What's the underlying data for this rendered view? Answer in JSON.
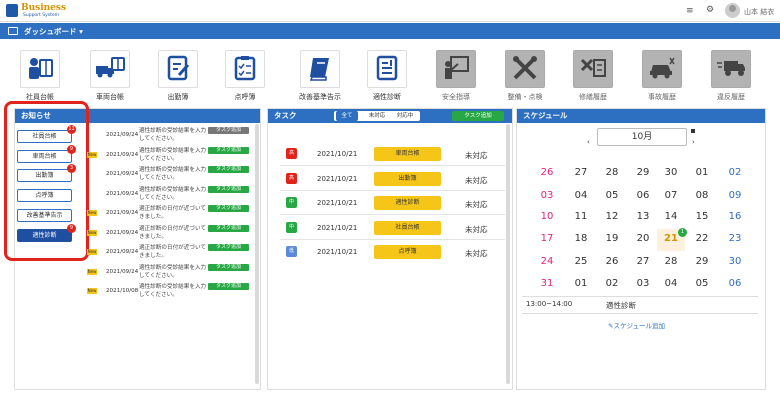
{
  "header": {
    "logo_title": "Business",
    "logo_sub": "Support System",
    "menu_glyph": "≡",
    "gear_glyph": "⚙",
    "user": "山本 結衣"
  },
  "dashbar": {
    "label": "ダッシュボード ▾"
  },
  "tiles": [
    {
      "label": "社員台帳",
      "gray": false,
      "icon": "employee-ledger-icon"
    },
    {
      "label": "車両台帳",
      "gray": false,
      "icon": "vehicle-ledger-icon"
    },
    {
      "label": "出勤簿",
      "gray": false,
      "icon": "attendance-icon"
    },
    {
      "label": "点呼簿",
      "gray": false,
      "icon": "rollcall-icon"
    },
    {
      "label": "改善基準告示",
      "gray": false,
      "icon": "book-icon"
    },
    {
      "label": "適性診断",
      "gray": false,
      "icon": "diagnosis-icon"
    },
    {
      "label": "安全指導",
      "gray": true,
      "icon": "safety-guidance-icon"
    },
    {
      "label": "整備・点検",
      "gray": true,
      "icon": "tools-icon"
    },
    {
      "label": "修繕履歴",
      "gray": true,
      "icon": "repair-icon"
    },
    {
      "label": "事故履歴",
      "gray": true,
      "icon": "accident-icon"
    },
    {
      "label": "違反履歴",
      "gray": true,
      "icon": "truck-icon"
    }
  ],
  "notice": {
    "title": "お知らせ",
    "buttons": [
      {
        "label": "社員台帳",
        "badge": "11"
      },
      {
        "label": "車両台帳",
        "badge": "9"
      },
      {
        "label": "出勤簿",
        "badge": "3"
      },
      {
        "label": "点呼簿",
        "badge": ""
      },
      {
        "label": "改善基準告示",
        "badge": ""
      },
      {
        "label": "適性診断",
        "badge": "9"
      }
    ],
    "rows": [
      {
        "new": "",
        "date": "2021/09/24",
        "text": "適性診断の受診結果を入力してください。",
        "tag": "タスク追加",
        "tag_color": "#777777"
      },
      {
        "new": "New",
        "date": "2021/09/24",
        "text": "適性診断の受診結果を入力してください。",
        "tag": "タスク追加",
        "tag_color": "#27a844"
      },
      {
        "new": "",
        "date": "2021/09/24",
        "text": "適性診断の受診結果を入力してください。",
        "tag": "タスク追加",
        "tag_color": "#27a844"
      },
      {
        "new": "",
        "date": "2021/09/24",
        "text": "適性診断の受診結果を入力してください。",
        "tag": "タスク追加",
        "tag_color": "#27a844"
      },
      {
        "new": "New",
        "date": "2021/09/24",
        "text": "適正診断の日付が近づいてきました。",
        "tag": "タスク追加",
        "tag_color": "#27a844"
      },
      {
        "new": "New",
        "date": "2021/09/24",
        "text": "適正診断の日付が近づいてきました。",
        "tag": "タスク追加",
        "tag_color": "#27a844"
      },
      {
        "new": "New",
        "date": "2021/09/24",
        "text": "適正診断の日付が近づいてきました。",
        "tag": "タスク追加",
        "tag_color": "#27a844"
      },
      {
        "new": "New",
        "date": "2021/09/24",
        "text": "適性診断の受診結果を入力してください。",
        "tag": "タスク追加",
        "tag_color": "#27a844"
      },
      {
        "new": "New",
        "date": "2021/10/08",
        "text": "適性診断の受診結果を入力してください。",
        "tag": "タスク追加",
        "tag_color": "#27a844"
      }
    ]
  },
  "task": {
    "title": "タスク",
    "tabs": [
      "全て",
      "未対応",
      "対応中"
    ],
    "add": "タスク追加",
    "rows": [
      {
        "priority": "高",
        "color": "#e0241b",
        "date": "2021/10/21",
        "category": "車両台帳",
        "status": "未対応"
      },
      {
        "priority": "高",
        "color": "#e0241b",
        "date": "2021/10/21",
        "category": "出勤簿",
        "status": "未対応"
      },
      {
        "priority": "中",
        "color": "#27a844",
        "date": "2021/10/21",
        "category": "適性診断",
        "status": "未対応"
      },
      {
        "priority": "中",
        "color": "#27a844",
        "date": "2021/10/21",
        "category": "社員台帳",
        "status": "未対応"
      },
      {
        "priority": "低",
        "color": "#5b8ad6",
        "date": "2021/10/21",
        "category": "点呼簿",
        "status": "未対応"
      }
    ]
  },
  "schedule": {
    "title": "スケジュール",
    "month": "10月",
    "prev": "‹",
    "next": "›",
    "weeks": [
      [
        "26",
        "27",
        "28",
        "29",
        "30",
        "01",
        "02"
      ],
      [
        "03",
        "04",
        "05",
        "06",
        "07",
        "08",
        "09"
      ],
      [
        "10",
        "11",
        "12",
        "13",
        "14",
        "15",
        "16"
      ],
      [
        "17",
        "18",
        "19",
        "20",
        "21",
        "22",
        "23"
      ],
      [
        "24",
        "25",
        "26",
        "27",
        "28",
        "29",
        "30"
      ],
      [
        "31",
        "01",
        "02",
        "03",
        "04",
        "05",
        "06"
      ]
    ],
    "today_badge": "1",
    "event_time": "13:00~14:00",
    "event_name": "適性診断",
    "add_link": "スケジュール追加"
  }
}
